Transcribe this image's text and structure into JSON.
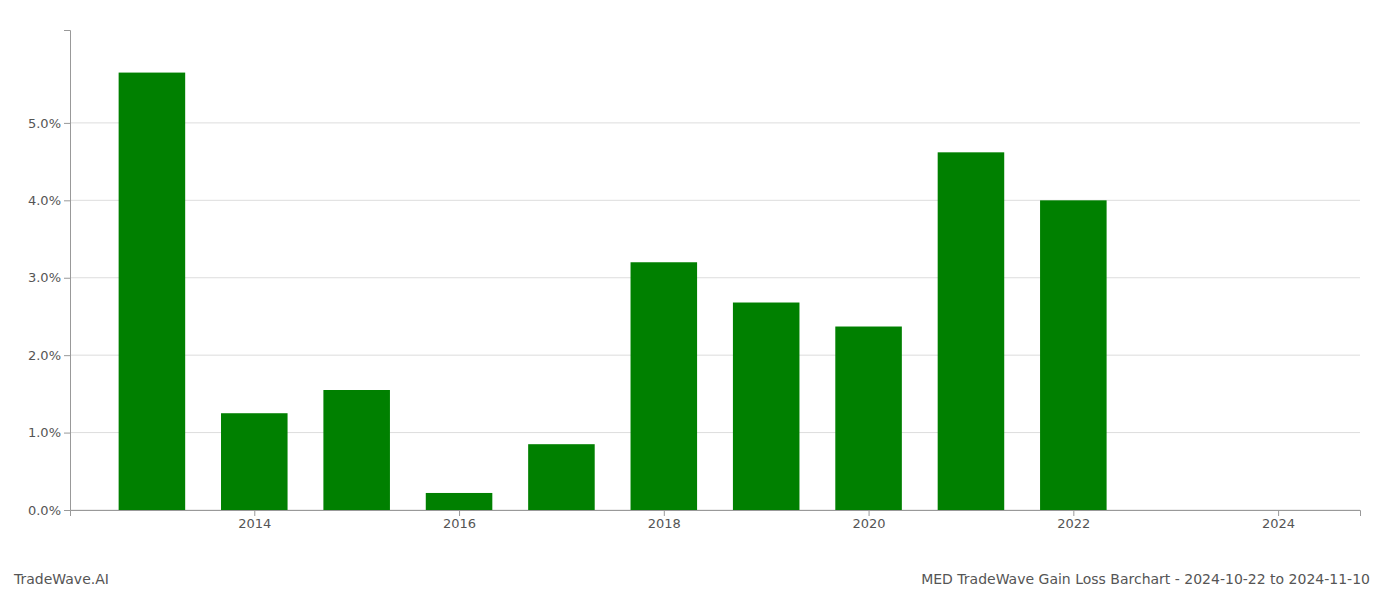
{
  "chart_data": {
    "type": "bar",
    "title": "MED TradeWave Gain Loss Barchart - 2024-10-22 to 2024-11-10",
    "annotations": [
      "TradeWave.AI"
    ],
    "x": [
      2013,
      2014,
      2015,
      2016,
      2017,
      2018,
      2019,
      2020,
      2021,
      2022
    ],
    "values": [
      0.0565,
      0.0125,
      0.0155,
      0.0022,
      0.0085,
      0.032,
      0.0268,
      0.0237,
      0.0462,
      0.04
    ],
    "color": "#008000",
    "xlim": [
      2012.2,
      2024.8
    ],
    "xticks": [
      2014,
      2016,
      2018,
      2020,
      2022,
      2024
    ],
    "ylim": [
      0,
      0.062
    ],
    "yticks": [
      {
        "value": 0.0,
        "label": "0.0%"
      },
      {
        "value": 0.01,
        "label": "1.0%"
      },
      {
        "value": 0.02,
        "label": "2.0%"
      },
      {
        "value": 0.03,
        "label": "3.0%"
      },
      {
        "value": 0.04,
        "label": "4.0%"
      },
      {
        "value": 0.05,
        "label": "5.0%"
      }
    ],
    "grid": true
  }
}
